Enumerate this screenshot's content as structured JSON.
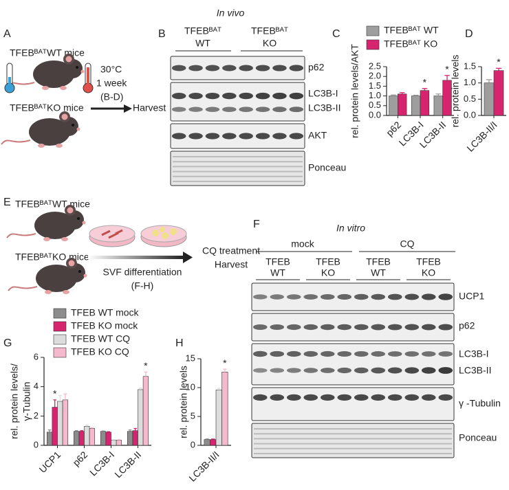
{
  "panel_labels": [
    "A",
    "B",
    "C",
    "D",
    "E",
    "F",
    "G",
    "H"
  ],
  "panel_a": {
    "wt_mice": "TFEBᴮᴬᵀWT mice",
    "ko_mice": "TFEBᴮᴬᵀKO mice",
    "temperature": "30°C",
    "duration": "1 week",
    "panels": "(B-D)",
    "harvest": "Harvest"
  },
  "panel_b": {
    "title": "In vivo",
    "groups": [
      {
        "line1": "TFEBᴮᴬᵀ",
        "line2": "WT"
      },
      {
        "line1": "TFEBᴮᴬᵀ",
        "line2": "KO"
      }
    ],
    "blots": [
      "p62",
      "LC3B-I",
      "LC3B-II",
      "AKT",
      "Ponceau"
    ]
  },
  "panel_e": {
    "wt_mice": "TFEBᴮᴬᵀWT mice",
    "ko_mice": "TFEBᴮᴬᵀKO mice",
    "differentiation": "SVF differentiation",
    "panels": "(F-H)",
    "treatment": "CQ treatment",
    "harvest": "Harvest"
  },
  "panel_f": {
    "title": "In vitro",
    "treatments": [
      "mock",
      "CQ"
    ],
    "groups": [
      {
        "line1": "TFEB",
        "line2": "WT"
      },
      {
        "line1": "TFEB",
        "line2": "KO"
      },
      {
        "line1": "TFEB",
        "line2": "WT"
      },
      {
        "line1": "TFEB",
        "line2": "KO"
      }
    ],
    "blots": [
      "UCP1",
      "p62",
      "LC3B-I",
      "LC3B-II",
      "γ -Tubulin",
      "Ponceau"
    ]
  },
  "chart_data": [
    {
      "type": "bar",
      "ylabel": [
        "rel. protein levels/AKT"
      ],
      "categories": [
        "p62",
        "LC3B-I",
        "LC3B-II"
      ],
      "series": [
        {
          "name": "TFEBᴮᴬᵀ WT",
          "color": "#9e9e9e",
          "values": [
            1.0,
            1.0,
            1.0
          ],
          "errors": [
            0.05,
            0.04,
            0.1
          ],
          "significance": [
            null,
            null,
            null
          ]
        },
        {
          "name": "TFEBᴮᴬᵀ KO",
          "color": "#d6246e",
          "values": [
            1.1,
            1.28,
            1.8
          ],
          "errors": [
            0.07,
            0.1,
            0.25
          ],
          "significance": [
            null,
            "*",
            "*"
          ]
        }
      ],
      "ylim": [
        0,
        2.5
      ],
      "yticks": [
        {
          "value": 0,
          "label": "0.0"
        },
        0.5,
        {
          "value": 1,
          "label": "1.0"
        },
        1.5,
        {
          "value": 2,
          "label": "2.0"
        },
        2.5
      ],
      "legend": "top"
    },
    {
      "type": "bar",
      "ylabel": [
        "rel. protein levels"
      ],
      "categories": [
        "LC3B-II/I"
      ],
      "series": [
        {
          "color": "#9e9e9e",
          "values": [
            1.0
          ],
          "errors": [
            0.1
          ],
          "significance": [
            null
          ]
        },
        {
          "color": "#d6246e",
          "values": [
            1.38
          ],
          "errors": [
            0.07
          ],
          "significance": [
            "*"
          ]
        }
      ],
      "ylim": [
        0,
        1.5
      ],
      "yticks": [
        {
          "value": 0,
          "label": "0.0"
        },
        0.5,
        {
          "value": 1,
          "label": "1.0"
        },
        1.5
      ]
    },
    {
      "type": "bar",
      "ylabel": [
        "rel. protein levels/",
        "γ-Tubulin"
      ],
      "categories": [
        "UCP1",
        "p62",
        "LC3B-I",
        "LC3B-II"
      ],
      "series": [
        {
          "name": "TFEB WT mock",
          "color": "#8c8c8c",
          "values": [
            0.9,
            0.95,
            0.95,
            0.95
          ],
          "errors": [
            0.15,
            0.05,
            0.03,
            0.1
          ],
          "significance": [
            null,
            null,
            null,
            null
          ]
        },
        {
          "name": "TFEB KO mock",
          "color": "#d6246e",
          "values": [
            2.6,
            0.95,
            0.9,
            1.0
          ],
          "errors": [
            0.5,
            0.05,
            0.03,
            0.15
          ],
          "significance": [
            "*",
            null,
            null,
            null
          ]
        },
        {
          "name": "TFEB WT CQ",
          "color": "#dcdcdc",
          "values": [
            3.0,
            1.3,
            0.35,
            3.8
          ],
          "errors": [
            0.4,
            0.08,
            0.03,
            0.1
          ],
          "significance": [
            null,
            null,
            null,
            null
          ]
        },
        {
          "name": "TFEB KO CQ",
          "color": "#f5b8cc",
          "values": [
            3.1,
            1.15,
            0.35,
            4.7
          ],
          "errors": [
            0.4,
            0.05,
            0.03,
            0.3
          ],
          "significance": [
            null,
            null,
            null,
            "*"
          ]
        }
      ],
      "ylim": [
        0,
        6
      ],
      "yticks": [
        0,
        2,
        4,
        6
      ],
      "legend": "top"
    },
    {
      "type": "bar",
      "ylabel": [
        "rel. protein levels"
      ],
      "categories": [
        "LC3B-II/I"
      ],
      "series": [
        {
          "color": "#8c8c8c",
          "values": [
            1.0
          ],
          "errors": [
            0.1
          ],
          "significance": [
            null
          ]
        },
        {
          "color": "#d6246e",
          "values": [
            1.0
          ],
          "errors": [
            0.1
          ],
          "significance": [
            null
          ]
        },
        {
          "color": "#dcdcdc",
          "values": [
            9.6
          ],
          "errors": [
            0.3
          ],
          "significance": [
            null
          ]
        },
        {
          "color": "#f5b8cc",
          "values": [
            12.7
          ],
          "errors": [
            0.5
          ],
          "significance": [
            "*"
          ]
        }
      ],
      "ylim": [
        0,
        15
      ],
      "yticks": [
        0,
        5,
        10,
        15
      ]
    }
  ]
}
